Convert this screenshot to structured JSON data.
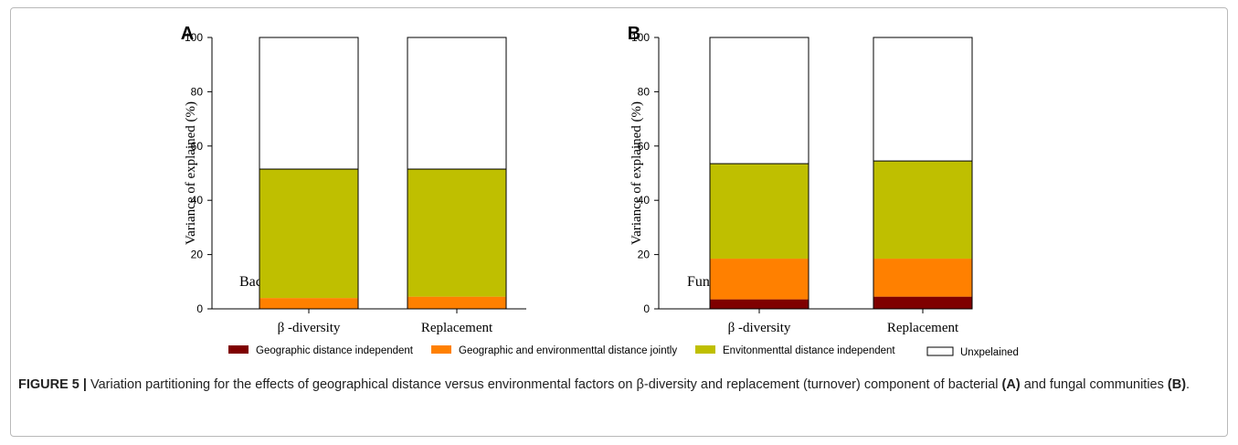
{
  "chart_data": [
    {
      "type": "bar",
      "stacked": true,
      "panel_label": "A",
      "annotation": "Bacteria",
      "ylabel": "Variance of explained (%)",
      "ylim": [
        0,
        100
      ],
      "yticks": [
        0,
        20,
        40,
        60,
        80,
        100
      ],
      "categories": [
        "β -diversity",
        "Replacement"
      ],
      "series": [
        {
          "name": "Geographic distance independent",
          "values": [
            0,
            0
          ]
        },
        {
          "name": "Geographic and environmenttal distance jointly",
          "values": [
            4,
            4.5
          ]
        },
        {
          "name": "Envitonmenttal distance independent",
          "values": [
            47.5,
            47
          ]
        },
        {
          "name": "Unxpelained",
          "values": [
            48.5,
            48.5
          ]
        }
      ]
    },
    {
      "type": "bar",
      "stacked": true,
      "panel_label": "B",
      "annotation": "Fungi",
      "ylabel": "Variance of explained (%)",
      "ylim": [
        0,
        100
      ],
      "yticks": [
        0,
        20,
        40,
        60,
        80,
        100
      ],
      "categories": [
        "β -diversity",
        "Replacement"
      ],
      "series": [
        {
          "name": "Geographic distance independent",
          "values": [
            3.5,
            4.5
          ]
        },
        {
          "name": "Geographic and environmenttal distance jointly",
          "values": [
            15,
            14
          ]
        },
        {
          "name": "Envitonmenttal distance independent",
          "values": [
            35,
            36
          ]
        },
        {
          "name": "Unxpelained",
          "values": [
            46.5,
            45.5
          ]
        }
      ]
    }
  ],
  "legend": {
    "position": "bottom",
    "items": [
      {
        "label": "Geographic distance independent",
        "color": "#7f0000"
      },
      {
        "label": "Geographic and environmenttal distance jointly",
        "color": "#ff8000"
      },
      {
        "label": "Envitonmenttal distance independent",
        "color": "#bfbf00"
      },
      {
        "label": "Unxpelained",
        "color": "#ffffff"
      }
    ]
  },
  "caption": {
    "label": "FIGURE 5 |",
    "text_1": " Variation partitioning for the effects of geographical distance versus environmental factors on β-diversity and replacement (turnover) component of bacterial ",
    "ref_a": "(A)",
    "text_2": " and fungal communities ",
    "ref_b": "(B)",
    "text_3": "."
  }
}
